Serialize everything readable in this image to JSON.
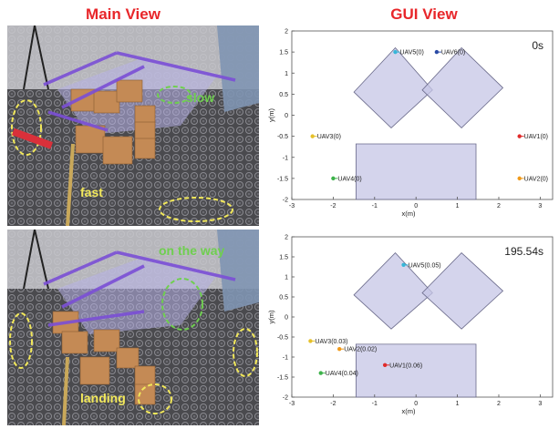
{
  "headers": {
    "left": "Main View",
    "right": "GUI View"
  },
  "photos": [
    {
      "labels": [
        {
          "text": "slow",
          "color": "#6fcf4f"
        },
        {
          "text": "fast",
          "color": "#f2e85a"
        }
      ]
    },
    {
      "labels": [
        {
          "text": "on the way",
          "color": "#6fcf4f"
        },
        {
          "text": "landing",
          "color": "#f2e85a"
        }
      ]
    }
  ],
  "chart_data": [
    {
      "type": "scatter",
      "time_label": "0s",
      "xlabel": "x(m)",
      "ylabel": "y(m)",
      "xlim": [
        -3,
        3.3
      ],
      "ylim": [
        -2,
        2
      ],
      "xticks": [
        "-3",
        "-2",
        "-1",
        "0",
        "1",
        "2",
        "3"
      ],
      "yticks": [
        "-2",
        "-1.5",
        "-1",
        "-0.5",
        "0",
        "0.5",
        "1",
        "1.5",
        "2"
      ],
      "grid": false,
      "obstacles": [
        {
          "shape": "diamond",
          "points": [
            [
              -1.5,
              0.55
            ],
            [
              -0.5,
              1.6
            ],
            [
              0.4,
              0.6
            ],
            [
              -0.6,
              -0.3
            ]
          ]
        },
        {
          "shape": "diamond",
          "points": [
            [
              0.15,
              0.6
            ],
            [
              1.1,
              -0.3
            ],
            [
              2.1,
              0.65
            ],
            [
              1.1,
              1.6
            ]
          ]
        },
        {
          "shape": "rectangle",
          "points": [
            [
              -1.45,
              -0.68
            ],
            [
              1.45,
              -0.68
            ],
            [
              1.45,
              -2
            ],
            [
              -1.45,
              -2
            ]
          ]
        }
      ],
      "points": [
        {
          "label": "UAV5(0)",
          "x": -0.5,
          "y": 1.5,
          "color": "#37b6d8"
        },
        {
          "label": "UAV6(0)",
          "x": 0.5,
          "y": 1.5,
          "color": "#2a4aa5"
        },
        {
          "label": "UAV3(0)",
          "x": -2.5,
          "y": -0.5,
          "color": "#e6c12a"
        },
        {
          "label": "UAV1(0)",
          "x": 2.5,
          "y": -0.5,
          "color": "#e02b2b"
        },
        {
          "label": "UAV4(0)",
          "x": -2.0,
          "y": -1.5,
          "color": "#3db24a"
        },
        {
          "label": "UAV2(0)",
          "x": 2.5,
          "y": -1.5,
          "color": "#f09a1a"
        }
      ]
    },
    {
      "type": "scatter",
      "time_label": "195.54s",
      "xlabel": "x(m)",
      "ylabel": "y(m)",
      "xlim": [
        -3,
        3.3
      ],
      "ylim": [
        -2,
        2
      ],
      "xticks": [
        "-3",
        "-2",
        "-1",
        "0",
        "1",
        "2",
        "3"
      ],
      "yticks": [
        "-2",
        "-1.5",
        "-1",
        "-0.5",
        "0",
        "0.5",
        "1",
        "1.5",
        "2"
      ],
      "grid": false,
      "obstacles": [
        {
          "shape": "diamond",
          "points": [
            [
              -1.5,
              0.55
            ],
            [
              -0.5,
              1.6
            ],
            [
              0.4,
              0.6
            ],
            [
              -0.6,
              -0.3
            ]
          ]
        },
        {
          "shape": "diamond",
          "points": [
            [
              0.15,
              0.6
            ],
            [
              1.1,
              -0.3
            ],
            [
              2.1,
              0.65
            ],
            [
              1.1,
              1.6
            ]
          ]
        },
        {
          "shape": "rectangle",
          "points": [
            [
              -1.45,
              -0.68
            ],
            [
              1.45,
              -0.68
            ],
            [
              1.45,
              -2
            ],
            [
              -1.45,
              -2
            ]
          ]
        }
      ],
      "points": [
        {
          "label": "UAV5(0.05)",
          "x": -0.3,
          "y": 1.3,
          "color": "#37b6d8"
        },
        {
          "label": "UAV3(0.03)",
          "x": -2.55,
          "y": -0.6,
          "color": "#e6c12a"
        },
        {
          "label": "UAV2(0.02)",
          "x": -1.85,
          "y": -0.8,
          "color": "#f09a1a"
        },
        {
          "label": "UAV1(0.06)",
          "x": -0.75,
          "y": -1.2,
          "color": "#e02b2b"
        },
        {
          "label": "UAV4(0.04)",
          "x": -2.3,
          "y": -1.4,
          "color": "#3db24a"
        }
      ]
    }
  ]
}
